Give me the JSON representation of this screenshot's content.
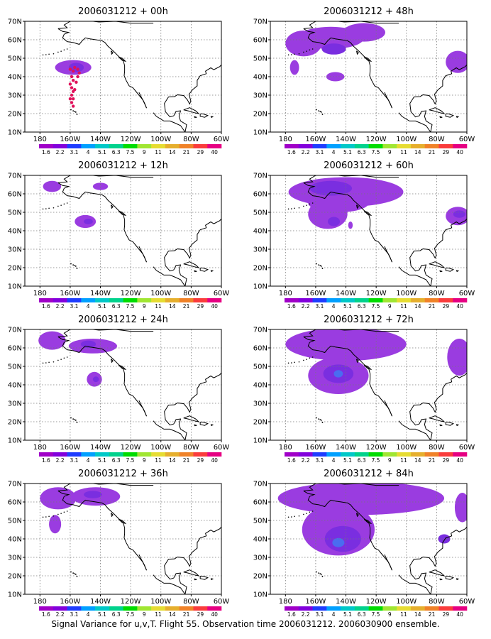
{
  "panels": [
    {
      "title": "2006031212 + 00h",
      "blobs": [
        {
          "lon": -158,
          "lat": 45,
          "rx": 12,
          "ry": 4,
          "level": 1
        },
        {
          "lon": -156,
          "lat": 45,
          "rx": 5,
          "ry": 2.5,
          "level": 2
        }
      ],
      "points": [
        [
          -160,
          44
        ],
        [
          -158,
          43
        ],
        [
          -157,
          45
        ],
        [
          -155,
          44
        ],
        [
          -154,
          42
        ],
        [
          -159,
          40
        ],
        [
          -158,
          38
        ],
        [
          -160,
          36
        ],
        [
          -159,
          34
        ],
        [
          -158,
          32
        ],
        [
          -159,
          30
        ],
        [
          -158,
          28
        ],
        [
          -159,
          26
        ],
        [
          -158,
          24
        ],
        [
          -160,
          28
        ],
        [
          -157,
          33
        ],
        [
          -156,
          37
        ],
        [
          -155,
          40
        ]
      ]
    },
    {
      "title": "2006031212 + 48h",
      "blobs": [
        {
          "lon": -150,
          "lat": 61,
          "rx": 22,
          "ry": 6,
          "level": 1
        },
        {
          "lon": -168,
          "lat": 58,
          "rx": 12,
          "ry": 7,
          "level": 1
        },
        {
          "lon": -128,
          "lat": 64,
          "rx": 14,
          "ry": 5,
          "level": 1
        },
        {
          "lon": -148,
          "lat": 55,
          "rx": 8,
          "ry": 3,
          "level": 2
        },
        {
          "lon": -174,
          "lat": 45,
          "rx": 3,
          "ry": 4,
          "level": 1
        },
        {
          "lon": -147,
          "lat": 40,
          "rx": 6,
          "ry": 2.5,
          "level": 1
        },
        {
          "lon": -66,
          "lat": 48,
          "rx": 8,
          "ry": 6,
          "level": 1
        }
      ],
      "points": []
    },
    {
      "title": "2006031212 + 12h",
      "blobs": [
        {
          "lon": -172,
          "lat": 64,
          "rx": 6,
          "ry": 3,
          "level": 1
        },
        {
          "lon": -140,
          "lat": 64,
          "rx": 5,
          "ry": 2,
          "level": 1
        },
        {
          "lon": -150,
          "lat": 45,
          "rx": 7,
          "ry": 3.5,
          "level": 1
        },
        {
          "lon": -148,
          "lat": 45,
          "rx": 3,
          "ry": 1.5,
          "level": 2
        }
      ],
      "points": []
    },
    {
      "title": "2006031212 + 60h",
      "blobs": [
        {
          "lon": -140,
          "lat": 61,
          "rx": 38,
          "ry": 8,
          "level": 1
        },
        {
          "lon": -152,
          "lat": 49,
          "rx": 13,
          "ry": 8,
          "level": 1
        },
        {
          "lon": -145,
          "lat": 55,
          "rx": 20,
          "ry": 5,
          "level": 1
        },
        {
          "lon": -150,
          "lat": 63,
          "rx": 14,
          "ry": 4,
          "level": 2
        },
        {
          "lon": -148,
          "lat": 45,
          "rx": 4,
          "ry": 2.5,
          "level": 2
        },
        {
          "lon": -137,
          "lat": 43,
          "rx": 1.5,
          "ry": 2,
          "level": 1
        },
        {
          "lon": -66,
          "lat": 48,
          "rx": 8,
          "ry": 5,
          "level": 1
        },
        {
          "lon": -65,
          "lat": 49,
          "rx": 4,
          "ry": 2,
          "level": 2
        }
      ],
      "points": []
    },
    {
      "title": "2006031212 + 24h",
      "blobs": [
        {
          "lon": -172,
          "lat": 64,
          "rx": 9,
          "ry": 5,
          "level": 1
        },
        {
          "lon": -145,
          "lat": 61,
          "rx": 16,
          "ry": 4,
          "level": 1
        },
        {
          "lon": -148,
          "lat": 62,
          "rx": 5,
          "ry": 2,
          "level": 2
        },
        {
          "lon": -144,
          "lat": 43,
          "rx": 5,
          "ry": 4,
          "level": 1
        },
        {
          "lon": -143,
          "lat": 43,
          "rx": 2,
          "ry": 1.5,
          "level": 2
        }
      ],
      "points": []
    },
    {
      "title": "2006031212 + 72h",
      "blobs": [
        {
          "lon": -140,
          "lat": 62,
          "rx": 40,
          "ry": 9,
          "level": 1
        },
        {
          "lon": -145,
          "lat": 45,
          "rx": 20,
          "ry": 10,
          "level": 1
        },
        {
          "lon": -145,
          "lat": 46,
          "rx": 10,
          "ry": 5,
          "level": 2
        },
        {
          "lon": -145,
          "lat": 46,
          "rx": 3,
          "ry": 2,
          "level": 3
        },
        {
          "lon": -65,
          "lat": 55,
          "rx": 8,
          "ry": 10,
          "level": 1
        }
      ],
      "points": []
    },
    {
      "title": "2006031212 + 36h",
      "blobs": [
        {
          "lon": -168,
          "lat": 62,
          "rx": 12,
          "ry": 6,
          "level": 1
        },
        {
          "lon": -143,
          "lat": 63,
          "rx": 16,
          "ry": 5,
          "level": 1
        },
        {
          "lon": -170,
          "lat": 48,
          "rx": 4,
          "ry": 5,
          "level": 1
        },
        {
          "lon": -145,
          "lat": 64,
          "rx": 6,
          "ry": 2,
          "level": 2
        }
      ],
      "points": []
    },
    {
      "title": "2006031212 + 84h",
      "blobs": [
        {
          "lon": -130,
          "lat": 62,
          "rx": 55,
          "ry": 9,
          "level": 1
        },
        {
          "lon": -145,
          "lat": 45,
          "rx": 24,
          "ry": 14,
          "level": 1
        },
        {
          "lon": -142,
          "lat": 40,
          "rx": 12,
          "ry": 7,
          "level": 2
        },
        {
          "lon": -145,
          "lat": 38,
          "rx": 4,
          "ry": 2.5,
          "level": 3
        },
        {
          "lon": -63,
          "lat": 57,
          "rx": 5,
          "ry": 8,
          "level": 1
        },
        {
          "lon": -75,
          "lat": 40,
          "rx": 4,
          "ry": 2.5,
          "level": 2
        }
      ],
      "points": []
    }
  ],
  "map": {
    "lon_min": -190,
    "lon_max": -60,
    "lat_min": 10,
    "lat_max": 70,
    "xticks": [
      -180,
      -160,
      -140,
      -120,
      -100,
      -80,
      -60
    ],
    "yticks": [
      10,
      20,
      30,
      40,
      50,
      60,
      70
    ]
  },
  "x_tick_labels": [
    "180",
    "160W",
    "140W",
    "120W",
    "100W",
    "80W",
    "60W"
  ],
  "y_tick_labels": [
    "10N",
    "20N",
    "30N",
    "40N",
    "50N",
    "60N",
    "70N"
  ],
  "colorbar": {
    "labels": [
      "1.6",
      "2.2",
      "3.1",
      "4",
      "5.1",
      "6.3",
      "7.5",
      "9",
      "11",
      "14",
      "21",
      "29",
      "40"
    ],
    "colors": [
      "#a000c8",
      "#8200dc",
      "#1e3cff",
      "#00a0ff",
      "#00c8c8",
      "#00d28c",
      "#00dc00",
      "#a0e632",
      "#e6dc32",
      "#e6af2d",
      "#f08228",
      "#fa3c3c",
      "#e60082"
    ]
  },
  "level_colors": [
    "#9a3ce0",
    "#7a2ee0",
    "#4a6cf0",
    "#28c8f0"
  ],
  "point_color": "#e0105a",
  "caption": "Signal Variance for u,v,T. Flight 55. Observation time 2006031212. 2006030900 ensemble."
}
